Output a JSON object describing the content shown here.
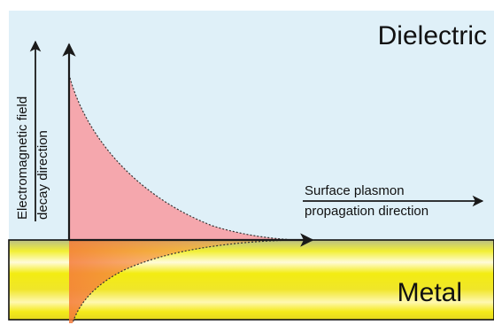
{
  "regions": {
    "upper": "Dielectric",
    "lower": "Metal"
  },
  "axes": {
    "vertical_line1": "Electromagnetic field",
    "vertical_line2": "decay direction",
    "horizontal_line1": "Surface plasmon",
    "horizontal_line2": "propagation direction"
  },
  "colors": {
    "dielectric_bg": "#dff0f8",
    "field_fill": "#f5a7ad",
    "metal_edge": "#c3c48a",
    "metal_band": "#f4ee1f",
    "metal_highlight": "#ffffff",
    "arrow": "#1a1a1a"
  }
}
